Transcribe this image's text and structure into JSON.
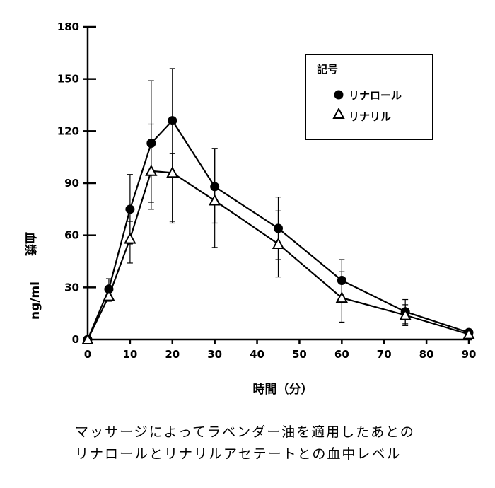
{
  "chart_data": {
    "type": "line",
    "xlabel": "時間（分）",
    "ylabel_main": "血漿",
    "ylabel_unit": "ng/ml",
    "xlim": [
      0,
      90
    ],
    "ylim": [
      0,
      180
    ],
    "x_ticks": [
      0,
      10,
      20,
      30,
      40,
      50,
      60,
      70,
      80,
      90
    ],
    "y_ticks": [
      0,
      30,
      60,
      90,
      120,
      150,
      180
    ],
    "grid": false,
    "legend_position": "top-right",
    "legend_title": "記号",
    "series": [
      {
        "name": "リナロール",
        "marker": "filled-circle",
        "x": [
          0,
          5,
          10,
          15,
          20,
          30,
          45,
          60,
          75,
          90
        ],
        "y": [
          0,
          29,
          75,
          113,
          126,
          88,
          64,
          34,
          16,
          4
        ],
        "err_low": [
          0,
          6,
          20,
          38,
          58,
          21,
          18,
          9,
          7,
          1
        ],
        "err_high": [
          0,
          6,
          20,
          36,
          30,
          22,
          18,
          12,
          7,
          1
        ]
      },
      {
        "name": "リナリル",
        "marker": "open-triangle",
        "x": [
          0,
          5,
          10,
          15,
          20,
          30,
          45,
          60,
          75,
          90
        ],
        "y": [
          0,
          25,
          58,
          97,
          96,
          80,
          55,
          24,
          14,
          3
        ],
        "err_low": [
          0,
          3,
          14,
          18,
          29,
          27,
          19,
          14,
          6,
          1
        ],
        "err_high": [
          0,
          3,
          10,
          27,
          11,
          30,
          19,
          15,
          6,
          1
        ]
      }
    ]
  },
  "caption": {
    "line1": "マッサージによってラベンダー油を適用したあとの",
    "line2": "リナロールとリナリルアセテートとの血中レベル"
  }
}
